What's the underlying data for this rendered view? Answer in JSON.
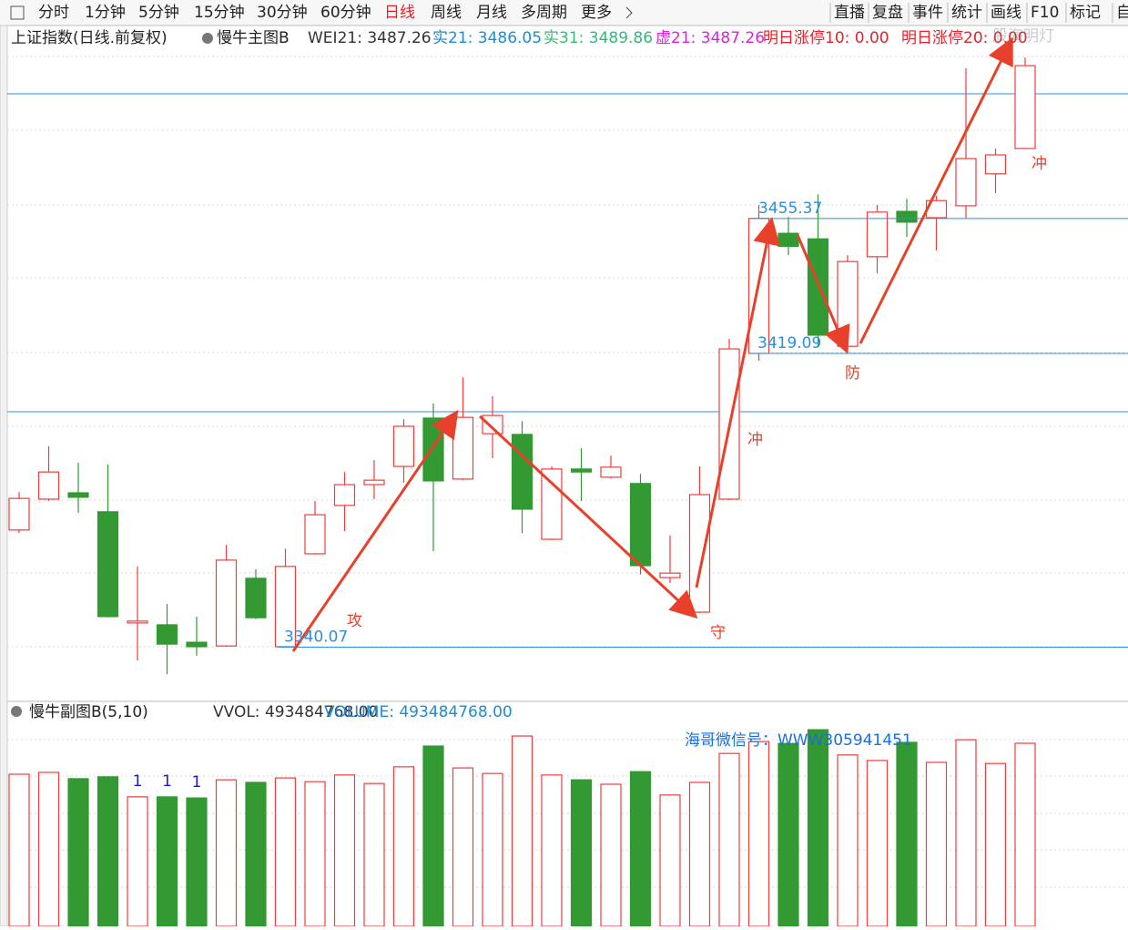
{
  "toolbar": {
    "left": [
      "分时",
      "1分钟",
      "5分钟",
      "15分钟",
      "30分钟",
      "60分钟",
      "日线",
      "周线",
      "月线",
      "多周期",
      "更多"
    ],
    "active": 6,
    "right": [
      "直播",
      "复盘",
      "事件",
      "统计",
      "画线",
      "F10",
      "标记",
      "自"
    ]
  },
  "main_header": {
    "title": "上证指数(日线.前复权)",
    "indicator": "慢牛主图B",
    "values": [
      "WEI21: 3487.26",
      "实21: 3486.05",
      "实31: 3489.86",
      "虚21: 3487.26",
      "明日涨停10: 0.00",
      "明日涨停20: 0.00"
    ]
  },
  "sub_header": {
    "indicator": "慢牛副图B(5,10)",
    "values": [
      "VVOL: 493484768.00",
      "VOLUME: 493484768.00"
    ],
    "note": "海哥微信号：WWW305941451"
  },
  "watermark": "股海明灯",
  "chart_data": [
    {
      "type": "candlestick",
      "up_color": "#f03c3c",
      "down_color": "#339933",
      "ylim": [
        3325.5,
        3506.8
      ],
      "open": [
        3371.6,
        3379.9,
        3381.6,
        3376.5,
        3346.6,
        3346.1,
        3341.4,
        3340.4,
        3358.6,
        3340.2,
        3365.2,
        3378.2,
        3383.8,
        3388.7,
        3401.7,
        3385.3,
        3397.5,
        3397.3,
        3369.1,
        3388.0,
        3385.8,
        3384.1,
        3358.8,
        3349.5,
        3379.9,
        3419.1,
        3451.4,
        3449.9,
        3421.0,
        3445.1,
        3457.3,
        3455.6,
        3458.8,
        3467.4,
        3474.2
      ],
      "high": [
        3381.8,
        3394.1,
        3389.7,
        3389.2,
        3361.8,
        3351.7,
        3348.3,
        3367.6,
        3361.0,
        3366.6,
        3379.4,
        3387.2,
        3390.4,
        3401.4,
        3405.6,
        3412.7,
        3407.6,
        3400.9,
        3388.7,
        3393.6,
        3391.6,
        3386.7,
        3370.1,
        3388.7,
        3423.0,
        3459.0,
        3455.8,
        3461.9,
        3445.5,
        3459.0,
        3460.7,
        3461.5,
        3495.8,
        3474.2,
        3498.7
      ],
      "low": [
        3370.8,
        3379.4,
        3376.2,
        3348.1,
        3336.5,
        3332.8,
        3337.8,
        3340.2,
        3347.6,
        3340.07,
        3365.0,
        3371.3,
        3379.9,
        3384.3,
        3365.9,
        3385.0,
        3390.9,
        3370.8,
        3368.9,
        3379.4,
        3385.5,
        3359.6,
        3357.3,
        3349.3,
        3379.6,
        3417.1,
        3445.5,
        3421.0,
        3419.1,
        3440.6,
        3450.4,
        3446.8,
        3455.4,
        3462.2,
        3474.0
      ],
      "close": [
        3380.1,
        3387.2,
        3380.4,
        3348.3,
        3347.1,
        3340.9,
        3340.2,
        3363.5,
        3348.0,
        3361.8,
        3375.7,
        3383.8,
        3385.0,
        3399.5,
        3384.8,
        3401.9,
        3402.4,
        3377.2,
        3388.0,
        3387.2,
        3388.5,
        3362.0,
        3360.0,
        3381.1,
        3420.3,
        3455.4,
        3447.9,
        3424.0,
        3443.8,
        3457.1,
        3454.4,
        3460.2,
        3471.5,
        3472.5,
        3496.5
      ],
      "levels": [
        3455.37,
        3419.09,
        3340.07
      ],
      "level_color": "#2b8fe0",
      "annotations": [
        "攻",
        "守",
        "冲",
        "防",
        "冲"
      ]
    },
    {
      "type": "bar",
      "ylim": [
        0,
        545000000
      ],
      "values": [
        410000000,
        415000000,
        398000000,
        403000000,
        349000000,
        349000000,
        346000000,
        395000000,
        388000000,
        400000000,
        390000000,
        408000000,
        385000000,
        430000000,
        486000000,
        427000000,
        412000000,
        513000000,
        408000000,
        395000000,
        383000000,
        417000000,
        354000000,
        388000000,
        466000000,
        498000000,
        493000000,
        530000000,
        462000000,
        447000000,
        496000000,
        442000000,
        503000000,
        439000000,
        493484768
      ],
      "colors": [
        "#f03c3c",
        "#f03c3c",
        "#339933",
        "#339933",
        "#f03c3c",
        "#339933",
        "#339933",
        "#f03c3c",
        "#339933",
        "#f03c3c",
        "#f03c3c",
        "#f03c3c",
        "#f03c3c",
        "#f03c3c",
        "#339933",
        "#f03c3c",
        "#f03c3c",
        "#f03c3c",
        "#f03c3c",
        "#339933",
        "#f03c3c",
        "#339933",
        "#f03c3c",
        "#f03c3c",
        "#f03c3c",
        "#f03c3c",
        "#339933",
        "#339933",
        "#f03c3c",
        "#f03c3c",
        "#339933",
        "#f03c3c",
        "#f03c3c",
        "#f03c3c",
        "#f03c3c"
      ],
      "signals": [
        null,
        null,
        null,
        null,
        "1",
        "1",
        "1",
        null,
        null,
        null,
        null,
        null,
        null,
        null,
        null,
        null,
        null,
        null,
        null,
        null,
        null,
        null,
        null,
        null,
        null,
        null,
        null,
        null,
        null,
        null,
        null,
        null,
        null,
        null,
        null
      ]
    }
  ]
}
